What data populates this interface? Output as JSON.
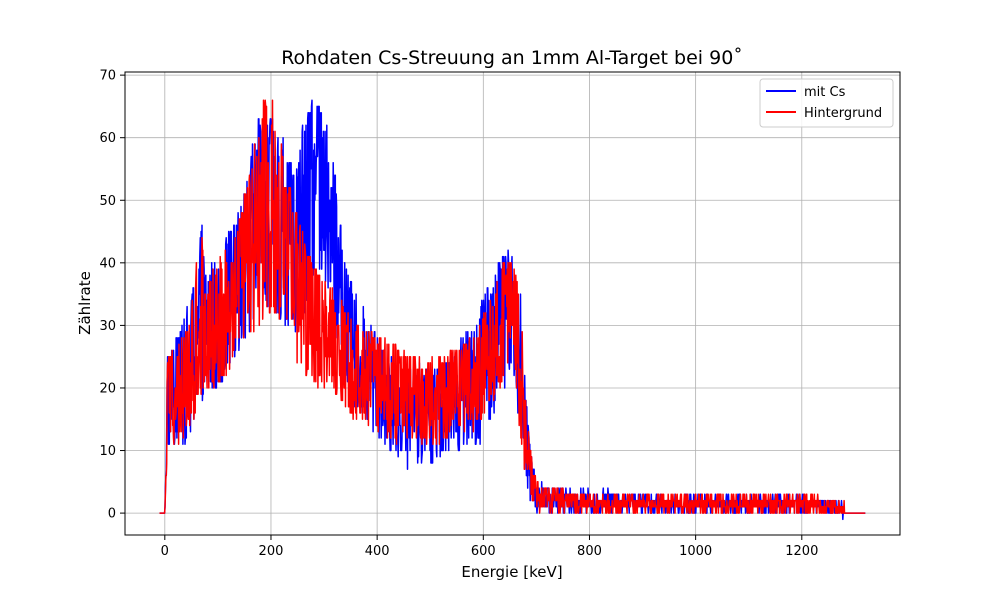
{
  "chart_data": {
    "type": "line",
    "title": "Rohdaten Cs-Streuung an 1mm Al-Target bei 90˚",
    "xlabel": "Energie [keV]",
    "ylabel": "Zählrate",
    "xlim": [
      -75,
      1385
    ],
    "ylim": [
      -3.5,
      70.5
    ],
    "xticks": [
      0,
      200,
      400,
      600,
      800,
      1000,
      1200
    ],
    "yticks": [
      0,
      10,
      20,
      30,
      40,
      50,
      60,
      70
    ],
    "grid": true,
    "legend_position": "top-right",
    "series": [
      {
        "name": "mit Cs",
        "color": "#0000ff",
        "x_range": [
          -10,
          1320
        ],
        "envelope": {
          "x": [
            -10,
            0,
            5,
            10,
            30,
            50,
            65,
            70,
            80,
            100,
            120,
            140,
            160,
            180,
            200,
            220,
            240,
            260,
            280,
            300,
            320,
            340,
            360,
            380,
            400,
            420,
            440,
            460,
            480,
            500,
            520,
            540,
            560,
            580,
            600,
            620,
            640,
            655,
            670,
            680,
            690,
            700,
            750,
            800,
            900,
            1000,
            1100,
            1200,
            1270,
            1280,
            1320
          ],
          "lower": [
            0,
            0,
            10,
            10,
            10,
            12,
            18,
            18,
            20,
            20,
            22,
            26,
            28,
            30,
            32,
            30,
            28,
            30,
            38,
            38,
            30,
            20,
            17,
            15,
            12,
            10,
            9,
            7,
            8,
            8,
            9,
            9,
            9,
            10,
            12,
            15,
            20,
            25,
            12,
            5,
            1,
            0,
            0,
            0,
            0,
            0,
            0,
            0,
            0,
            0,
            0
          ],
          "upper": [
            0,
            0,
            26,
            27,
            30,
            35,
            45,
            47,
            42,
            40,
            45,
            48,
            58,
            64,
            63,
            62,
            55,
            62,
            67,
            65,
            55,
            40,
            35,
            32,
            28,
            25,
            25,
            23,
            24,
            24,
            24,
            25,
            28,
            30,
            35,
            38,
            42,
            42,
            35,
            20,
            10,
            5,
            4,
            4,
            3,
            3,
            3,
            3,
            2,
            0,
            0
          ]
        }
      },
      {
        "name": "Hintergrund",
        "color": "#ff0000",
        "x_range": [
          -10,
          1320
        ],
        "envelope": {
          "x": [
            -10,
            0,
            5,
            10,
            30,
            50,
            65,
            70,
            80,
            100,
            120,
            140,
            160,
            180,
            200,
            220,
            240,
            260,
            280,
            300,
            320,
            340,
            360,
            380,
            400,
            420,
            440,
            460,
            480,
            500,
            520,
            540,
            560,
            580,
            600,
            620,
            640,
            655,
            670,
            680,
            690,
            700,
            750,
            800,
            900,
            1000,
            1100,
            1200,
            1270,
            1280,
            1320
          ],
          "lower": [
            0,
            0,
            10,
            10,
            11,
            13,
            18,
            19,
            20,
            20,
            22,
            26,
            28,
            30,
            32,
            30,
            25,
            22,
            20,
            20,
            18,
            16,
            15,
            14,
            13,
            12,
            11,
            11,
            11,
            11,
            11,
            12,
            12,
            13,
            15,
            18,
            22,
            25,
            12,
            5,
            1,
            0,
            0,
            0,
            0,
            0,
            0,
            0,
            0,
            0,
            0
          ],
          "upper": [
            0,
            0,
            26,
            26,
            28,
            33,
            44,
            44,
            42,
            40,
            43,
            47,
            55,
            66,
            67,
            60,
            50,
            45,
            40,
            38,
            35,
            33,
            31,
            30,
            29,
            28,
            27,
            26,
            25,
            25,
            25,
            26,
            27,
            28,
            32,
            36,
            42,
            40,
            35,
            18,
            10,
            5,
            4,
            3,
            3,
            3,
            3,
            3,
            2,
            0,
            0
          ]
        }
      }
    ]
  }
}
